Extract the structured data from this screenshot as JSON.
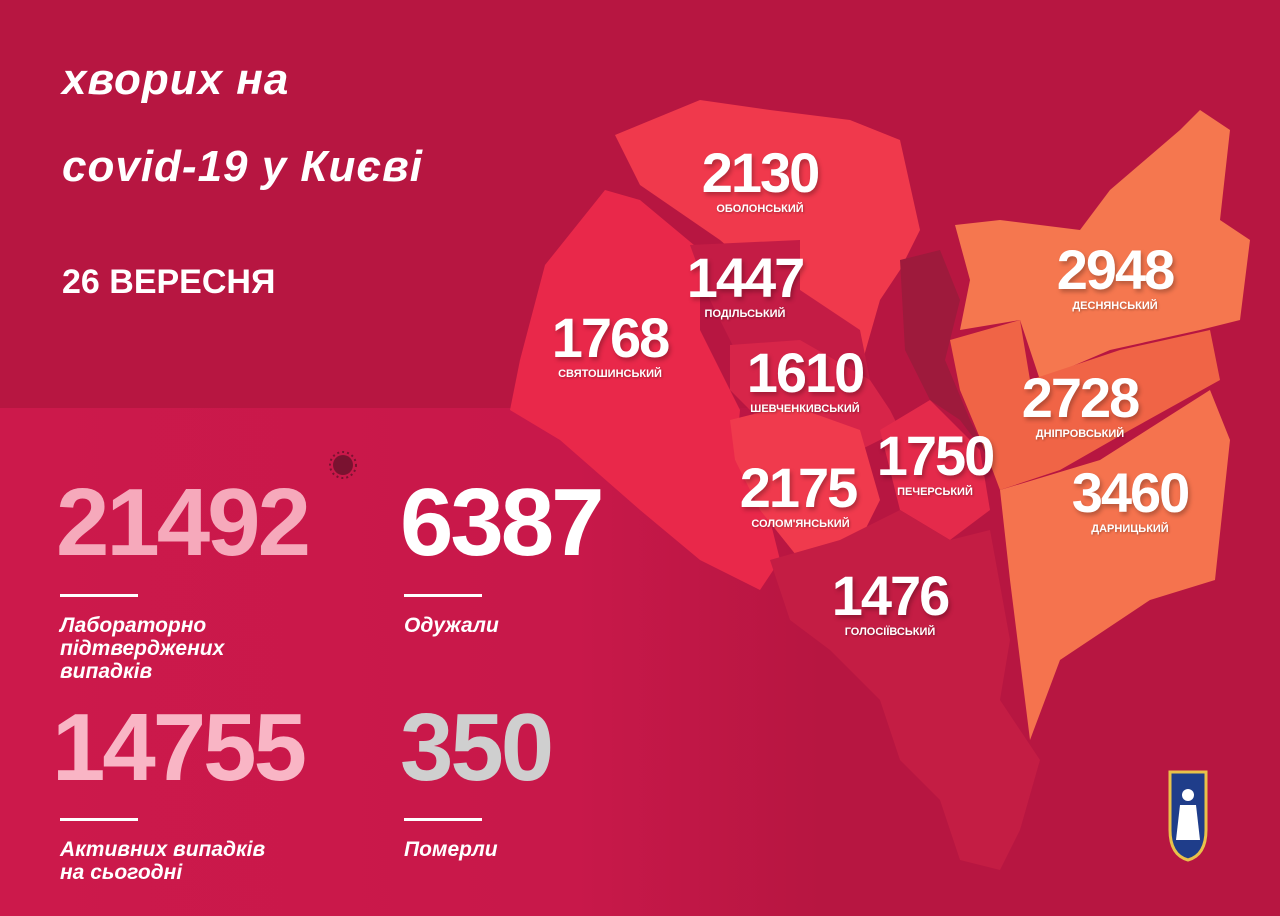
{
  "title_line1": "хворих на",
  "title_line2": "covid-19 у Києві",
  "date": "26 ВЕРЕСНЯ",
  "districts": [
    {
      "name": "ОБОЛОНСЬКИЙ",
      "value": "2130",
      "color": "#f0394c"
    },
    {
      "name": "ПОДІЛЬСЬКИЙ",
      "value": "1447",
      "color": "#c41c45"
    },
    {
      "name": "СВЯТОШИНСЬКИЙ",
      "value": "1768",
      "color": "#e9284a"
    },
    {
      "name": "ШЕВЧЕНКИВСЬКИЙ",
      "value": "1610",
      "color": "#d72549"
    },
    {
      "name": "ПЕЧЕРСЬКИЙ",
      "value": "1750",
      "color": "#e42a4b"
    },
    {
      "name": "СОЛОМ'ЯНСЬКИЙ",
      "value": "2175",
      "color": "#f03a4d"
    },
    {
      "name": "ГОЛОСІЇВСЬКИЙ",
      "value": "1476",
      "color": "#c41d44"
    },
    {
      "name": "ДЕСНЯНСЬКИЙ",
      "value": "2948",
      "color": "#f5774f"
    },
    {
      "name": "ДНІПРОВСЬКИЙ",
      "value": "2728",
      "color": "#f06446"
    },
    {
      "name": "ДАРНИЦЬКИЙ",
      "value": "3460",
      "color": "#f5734e"
    }
  ],
  "stats": {
    "confirmed": {
      "value": "21492",
      "label_lines": [
        "Лабораторно",
        "підтверджених",
        "випадків"
      ],
      "color": "#f6a9bb"
    },
    "recovered": {
      "value": "6387",
      "label_lines": [
        "Одужали"
      ],
      "color": "#ffffff"
    },
    "active": {
      "value": "14755",
      "label_lines": [
        "Активних випадків",
        "на сьогодні"
      ],
      "color": "#f9b5c5"
    },
    "deaths": {
      "value": "350",
      "label_lines": [
        "Померли"
      ],
      "color": "#cfcfcf"
    }
  },
  "icons": [
    "virus-icon",
    "kyiv-coat-of-arms-icon"
  ]
}
